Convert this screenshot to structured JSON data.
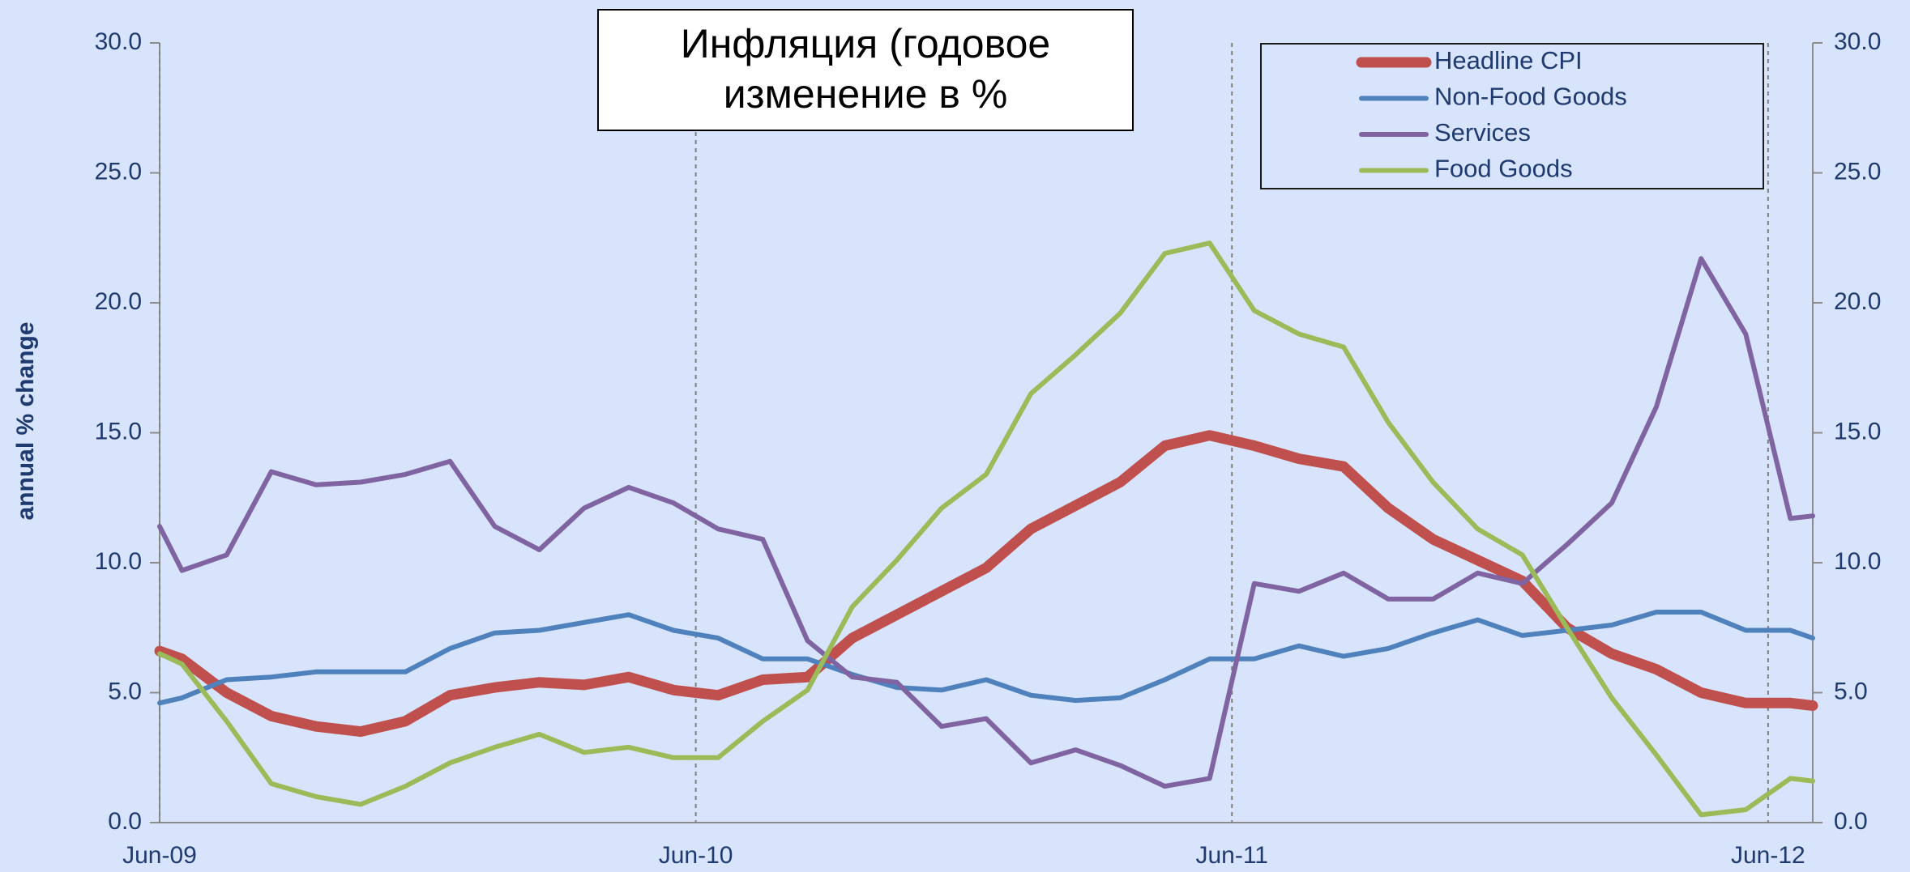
{
  "chart_data": {
    "type": "line",
    "title": "Инфляция (годовое изменение в %",
    "ylabel": "annual % change",
    "x": [
      0,
      0.5,
      1.5,
      2.5,
      3.5,
      4.5,
      5.5,
      6.5,
      7.5,
      8.5,
      9.5,
      10.5,
      11.5,
      12.5,
      13.5,
      14.5,
      15.5,
      16.5,
      17.5,
      18.5,
      19.5,
      20.5,
      21.5,
      22.5,
      23.5,
      24.5,
      25.5,
      26.5,
      27.5,
      28.5,
      29.5,
      30.5,
      31.5,
      32.5,
      33.5,
      34.5,
      35.5,
      36.5,
      37
    ],
    "xlim": [
      0,
      37
    ],
    "xticks": [
      {
        "value": 0,
        "label": "Jun-09"
      },
      {
        "value": 12,
        "label": "Jun-10"
      },
      {
        "value": 24,
        "label": "Jun-11"
      },
      {
        "value": 36,
        "label": "Jun-12"
      }
    ],
    "ylim": [
      0,
      30
    ],
    "yticks": [
      {
        "value": 0,
        "label": "0.0"
      },
      {
        "value": 5,
        "label": "5.0"
      },
      {
        "value": 10,
        "label": "10.0"
      },
      {
        "value": 15,
        "label": "15.0"
      },
      {
        "value": 20,
        "label": "20.0"
      },
      {
        "value": 25,
        "label": "25.0"
      },
      {
        "value": 30,
        "label": "30.0"
      }
    ],
    "y2lim": [
      0,
      30
    ],
    "y2ticks": [
      {
        "value": 0,
        "label": "0.0"
      },
      {
        "value": 5,
        "label": "5.0"
      },
      {
        "value": 10,
        "label": "10.0"
      },
      {
        "value": 15,
        "label": "15.0"
      },
      {
        "value": 20,
        "label": "20.0"
      },
      {
        "value": 25,
        "label": "25.0"
      },
      {
        "value": 30,
        "label": "30.0"
      }
    ],
    "x_grid": true,
    "legend": "upper right",
    "series": [
      {
        "name": "Headline CPI",
        "color": "#c0504d",
        "values": [
          6.6,
          6.3,
          5.0,
          4.1,
          3.7,
          3.5,
          3.9,
          4.9,
          5.2,
          5.4,
          5.3,
          5.6,
          5.1,
          4.9,
          5.5,
          5.6,
          7.1,
          8.0,
          8.9,
          9.8,
          11.3,
          12.2,
          13.1,
          14.5,
          14.9,
          14.5,
          14.0,
          13.7,
          12.1,
          10.9,
          10.1,
          9.3,
          7.5,
          6.5,
          5.9,
          5.0,
          4.6,
          4.6,
          4.5
        ]
      },
      {
        "name": "Non-Food Goods",
        "color": "#4f81bd",
        "values": [
          4.6,
          4.8,
          5.5,
          5.6,
          5.8,
          5.8,
          5.8,
          6.7,
          7.3,
          7.4,
          7.7,
          8.0,
          7.4,
          7.1,
          6.3,
          6.3,
          5.7,
          5.2,
          5.1,
          5.5,
          4.9,
          4.7,
          4.8,
          5.5,
          6.3,
          6.3,
          6.8,
          6.4,
          6.7,
          7.3,
          7.8,
          7.2,
          7.4,
          7.6,
          8.1,
          8.1,
          7.4,
          7.4,
          7.1
        ]
      },
      {
        "name": "Services",
        "color": "#8064a2",
        "values": [
          11.4,
          9.7,
          10.3,
          13.5,
          13.0,
          13.1,
          13.4,
          13.9,
          11.4,
          10.5,
          12.1,
          12.9,
          12.3,
          11.3,
          10.9,
          7.0,
          5.6,
          5.4,
          3.7,
          4.0,
          2.3,
          2.8,
          2.2,
          1.4,
          1.7,
          9.2,
          8.9,
          9.6,
          8.6,
          8.6,
          9.6,
          9.2,
          10.7,
          12.3,
          16.0,
          21.7,
          18.8,
          11.7,
          11.8
        ]
      },
      {
        "name": "Food Goods",
        "color": "#9bbb59",
        "values": [
          6.5,
          6.1,
          3.9,
          1.5,
          1.0,
          0.7,
          1.4,
          2.3,
          2.9,
          3.4,
          2.7,
          2.9,
          2.5,
          2.5,
          3.9,
          5.1,
          8.3,
          10.1,
          12.1,
          13.4,
          16.5,
          18.0,
          19.6,
          21.9,
          22.3,
          19.7,
          18.8,
          18.3,
          15.4,
          13.1,
          11.3,
          10.3,
          7.5,
          4.8,
          2.6,
          0.3,
          0.5,
          1.7,
          1.6
        ]
      }
    ]
  }
}
